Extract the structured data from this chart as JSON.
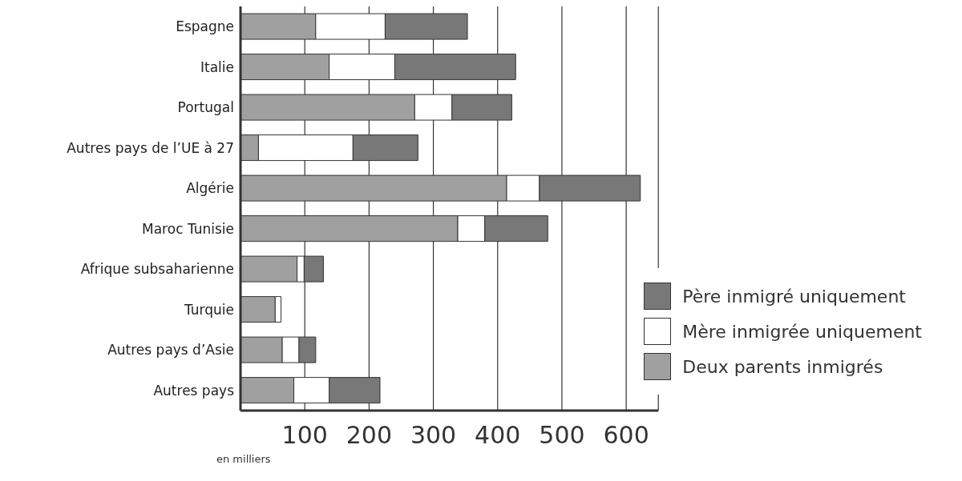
{
  "chart_data": {
    "type": "bar",
    "orientation": "horizontal",
    "stacked": true,
    "categories": [
      "Espagne",
      "Italie",
      "Portugal",
      "Autres pays de l’UE à 27",
      "Algérie",
      "Maroc Tunisie",
      "Afrique subsaharienne",
      "Turquie",
      "Autres pays d’Asie",
      "Autres pays"
    ],
    "series": [
      {
        "name": "Deux parents inmigrés",
        "color": "#a0a0a0",
        "values": [
          117,
          138,
          271,
          28,
          414,
          338,
          88,
          54,
          65,
          83
        ]
      },
      {
        "name": "Mère inmigrée uniquement",
        "color": "#ffffff",
        "values": [
          108,
          102,
          58,
          147,
          51,
          42,
          11,
          9,
          26,
          55
        ]
      },
      {
        "name": "Père inmigré uniquement",
        "color": "#787878",
        "values": [
          128,
          188,
          93,
          101,
          157,
          98,
          30,
          0,
          26,
          79
        ]
      }
    ],
    "xlim": [
      0,
      650
    ],
    "xticks": [
      100,
      200,
      300,
      400,
      500,
      600
    ],
    "grid": "x",
    "legend": "bottom right",
    "annotations": [
      "en milliers"
    ]
  }
}
